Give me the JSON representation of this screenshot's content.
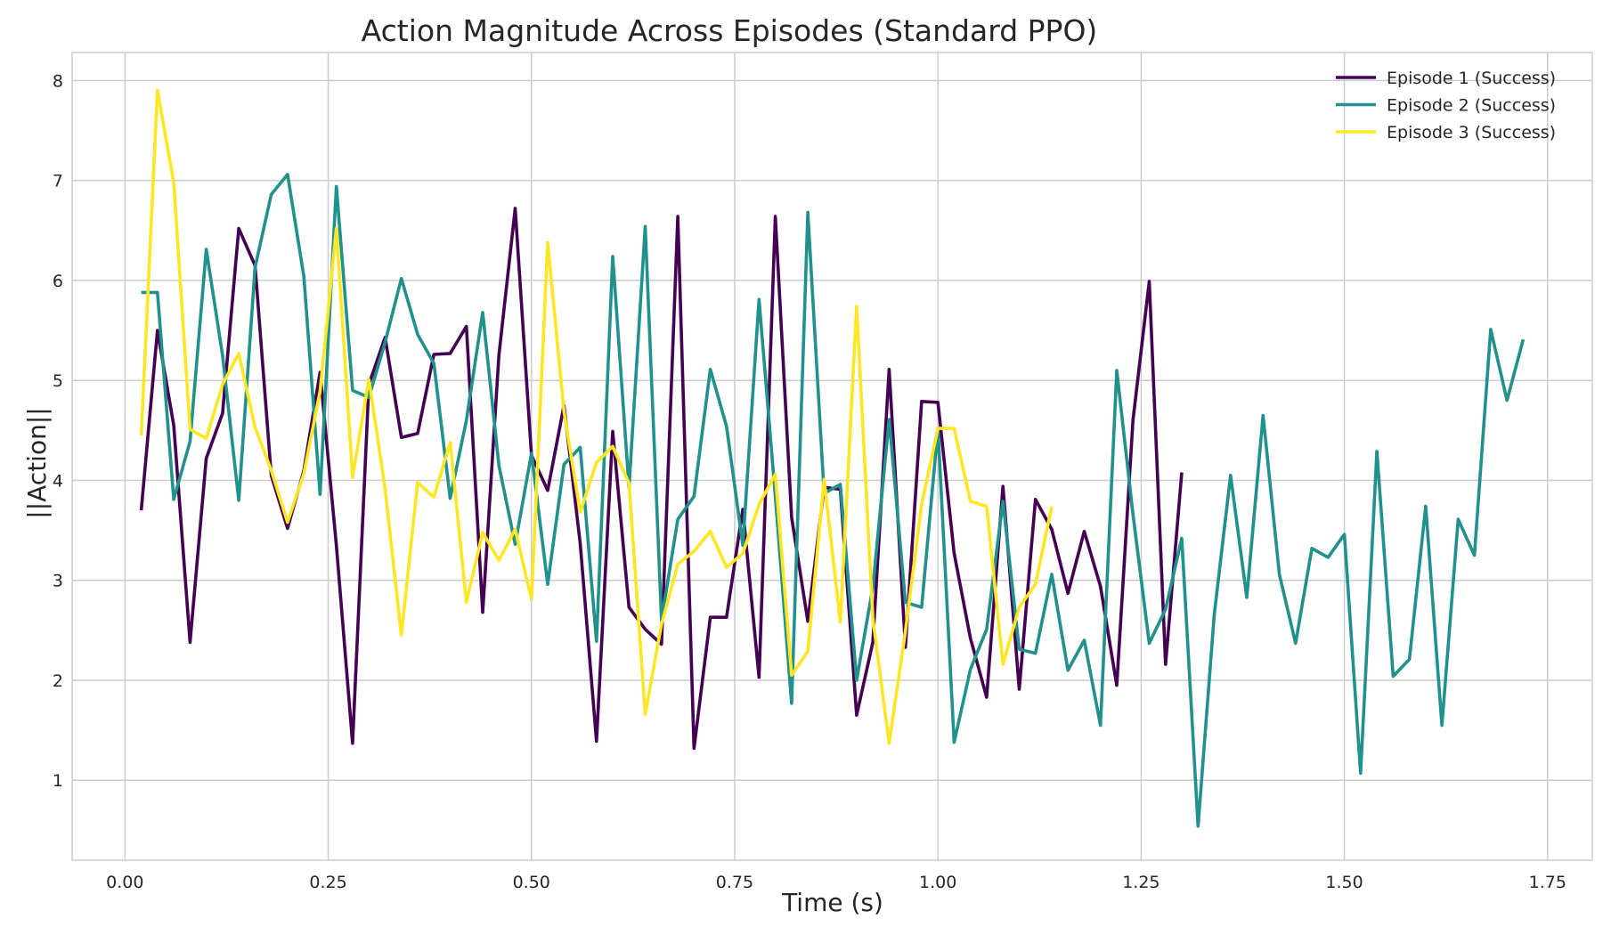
{
  "chart_data": {
    "type": "line",
    "title": "Action Magnitude Across Episodes (Standard PPO)",
    "xlabel": "Time (s)",
    "ylabel": "||Action||",
    "xlim": [
      -0.065,
      1.805
    ],
    "ylim": [
      0.2,
      8.28
    ],
    "xticks": [
      0.0,
      0.25,
      0.5,
      0.75,
      1.0,
      1.25,
      1.5,
      1.75
    ],
    "xtick_labels": [
      "0.00",
      "0.25",
      "0.50",
      "0.75",
      "1.00",
      "1.25",
      "1.50",
      "1.75"
    ],
    "yticks": [
      1,
      2,
      3,
      4,
      5,
      6,
      7,
      8
    ],
    "ytick_labels": [
      "1",
      "2",
      "3",
      "4",
      "5",
      "6",
      "7",
      "8"
    ],
    "grid": true,
    "legend_position": "top-right",
    "series": [
      {
        "name": "Episode 1 (Success)",
        "color": "#440154",
        "x": [
          0.02,
          0.04,
          0.06,
          0.08,
          0.1,
          0.12,
          0.14,
          0.16,
          0.18,
          0.2,
          0.22,
          0.24,
          0.26,
          0.28,
          0.3,
          0.32,
          0.34,
          0.36,
          0.38,
          0.4,
          0.42,
          0.44,
          0.46,
          0.48,
          0.5,
          0.52,
          0.54,
          0.56,
          0.58,
          0.6,
          0.62,
          0.64,
          0.66,
          0.68,
          0.7,
          0.72,
          0.74,
          0.76,
          0.78,
          0.8,
          0.82,
          0.84,
          0.86,
          0.88,
          0.9,
          0.92,
          0.94,
          0.96,
          0.98,
          1.0,
          1.02,
          1.04,
          1.06,
          1.08,
          1.1,
          1.12,
          1.14,
          1.16,
          1.18,
          1.2,
          1.22,
          1.24,
          1.26,
          1.28,
          1.3
        ],
        "y": [
          3.7,
          5.5,
          4.55,
          2.38,
          4.22,
          4.67,
          6.52,
          6.15,
          4.05,
          3.52,
          4.1,
          5.08,
          3.35,
          1.37,
          4.96,
          5.43,
          4.43,
          4.47,
          5.26,
          5.27,
          5.54,
          2.68,
          5.25,
          6.72,
          4.25,
          3.9,
          4.75,
          3.37,
          1.39,
          4.49,
          2.73,
          2.51,
          2.36,
          6.64,
          1.32,
          2.63,
          2.63,
          3.71,
          2.03,
          6.64,
          3.63,
          2.59,
          3.93,
          3.91,
          1.65,
          2.38,
          5.11,
          2.33,
          4.79,
          4.78,
          3.27,
          2.42,
          1.83,
          3.94,
          1.91,
          3.81,
          3.51,
          2.87,
          3.49,
          2.94,
          1.95,
          4.6,
          5.99,
          2.16,
          4.08
        ]
      },
      {
        "name": "Episode 2 (Success)",
        "color": "#21918c",
        "x": [
          0.02,
          0.04,
          0.06,
          0.08,
          0.1,
          0.12,
          0.14,
          0.16,
          0.18,
          0.2,
          0.22,
          0.24,
          0.26,
          0.28,
          0.3,
          0.32,
          0.34,
          0.36,
          0.38,
          0.4,
          0.42,
          0.44,
          0.46,
          0.48,
          0.5,
          0.52,
          0.54,
          0.56,
          0.58,
          0.6,
          0.62,
          0.64,
          0.66,
          0.68,
          0.7,
          0.72,
          0.74,
          0.76,
          0.78,
          0.8,
          0.82,
          0.84,
          0.86,
          0.88,
          0.9,
          0.92,
          0.94,
          0.96,
          0.98,
          1.0,
          1.02,
          1.04,
          1.06,
          1.08,
          1.1,
          1.12,
          1.14,
          1.16,
          1.18,
          1.2,
          1.22,
          1.24,
          1.26,
          1.28,
          1.3,
          1.32,
          1.34,
          1.36,
          1.38,
          1.4,
          1.42,
          1.44,
          1.46,
          1.48,
          1.5,
          1.52,
          1.54,
          1.56,
          1.58,
          1.6,
          1.62,
          1.64,
          1.66,
          1.68,
          1.7,
          1.72
        ],
        "y": [
          5.88,
          5.88,
          3.81,
          4.39,
          6.31,
          5.25,
          3.8,
          6.13,
          6.86,
          7.06,
          6.04,
          3.86,
          6.94,
          4.9,
          4.83,
          5.38,
          6.02,
          5.46,
          5.17,
          3.82,
          4.6,
          5.68,
          4.15,
          3.36,
          4.27,
          2.96,
          4.16,
          4.33,
          2.39,
          6.24,
          3.93,
          6.54,
          2.6,
          3.61,
          3.84,
          5.11,
          4.54,
          3.35,
          5.81,
          3.84,
          1.77,
          6.68,
          3.87,
          3.96,
          2.0,
          2.93,
          4.61,
          2.78,
          2.73,
          4.52,
          1.38,
          2.11,
          2.51,
          3.79,
          2.31,
          2.27,
          3.06,
          2.1,
          2.4,
          1.55,
          5.1,
          3.66,
          2.37,
          2.71,
          3.42,
          0.54,
          2.66,
          4.05,
          2.83,
          4.65,
          3.06,
          2.37,
          3.32,
          3.23,
          3.46,
          1.07,
          4.29,
          2.04,
          2.21,
          3.74,
          1.55,
          3.61,
          3.25,
          5.51,
          4.8,
          5.41
        ]
      },
      {
        "name": "Episode 3 (Success)",
        "color": "#fde725",
        "x": [
          0.02,
          0.04,
          0.06,
          0.08,
          0.1,
          0.12,
          0.14,
          0.16,
          0.18,
          0.2,
          0.22,
          0.24,
          0.26,
          0.28,
          0.3,
          0.32,
          0.34,
          0.36,
          0.38,
          0.4,
          0.42,
          0.44,
          0.46,
          0.48,
          0.5,
          0.52,
          0.54,
          0.56,
          0.58,
          0.6,
          0.62,
          0.64,
          0.66,
          0.68,
          0.7,
          0.72,
          0.74,
          0.76,
          0.78,
          0.8,
          0.82,
          0.84,
          0.86,
          0.88,
          0.9,
          0.92,
          0.94,
          0.96,
          0.98,
          1.0,
          1.02,
          1.04,
          1.06,
          1.08,
          1.1,
          1.12,
          1.14
        ],
        "y": [
          4.45,
          7.9,
          6.98,
          4.51,
          4.42,
          4.96,
          5.27,
          4.53,
          4.1,
          3.58,
          4.07,
          4.89,
          6.52,
          4.03,
          5.01,
          3.92,
          2.45,
          3.98,
          3.83,
          4.38,
          2.78,
          3.48,
          3.2,
          3.51,
          2.81,
          6.38,
          4.69,
          3.68,
          4.18,
          4.34,
          3.97,
          1.66,
          2.56,
          3.16,
          3.29,
          3.49,
          3.13,
          3.27,
          3.76,
          4.06,
          2.05,
          2.29,
          4.01,
          2.58,
          5.74,
          2.62,
          1.37,
          2.49,
          3.76,
          4.52,
          4.52,
          3.79,
          3.74,
          2.16,
          2.73,
          2.96,
          3.74
        ]
      }
    ]
  }
}
